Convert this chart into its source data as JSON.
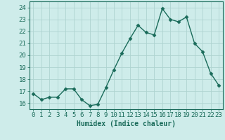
{
  "x": [
    0,
    1,
    2,
    3,
    4,
    5,
    6,
    7,
    8,
    9,
    10,
    11,
    12,
    13,
    14,
    15,
    16,
    17,
    18,
    19,
    20,
    21,
    22,
    23
  ],
  "y": [
    16.8,
    16.3,
    16.5,
    16.5,
    17.2,
    17.2,
    16.3,
    15.8,
    15.9,
    17.3,
    18.8,
    20.2,
    21.4,
    22.5,
    21.9,
    21.7,
    23.9,
    23.0,
    22.8,
    23.2,
    21.0,
    20.3,
    18.5,
    17.5
  ],
  "line_color": "#1a6b5a",
  "marker": "D",
  "markersize": 2.5,
  "linewidth": 1.0,
  "bg_color": "#ceecea",
  "grid_color": "#aed4d0",
  "xlabel": "Humidex (Indice chaleur)",
  "xlim": [
    -0.5,
    23.5
  ],
  "ylim": [
    15.5,
    24.5
  ],
  "yticks": [
    16,
    17,
    18,
    19,
    20,
    21,
    22,
    23,
    24
  ],
  "xticks": [
    0,
    1,
    2,
    3,
    4,
    5,
    6,
    7,
    8,
    9,
    10,
    11,
    12,
    13,
    14,
    15,
    16,
    17,
    18,
    19,
    20,
    21,
    22,
    23
  ],
  "tick_color": "#1a6b5a",
  "label_color": "#1a6b5a",
  "xlabel_fontsize": 7,
  "tick_fontsize": 6.5
}
